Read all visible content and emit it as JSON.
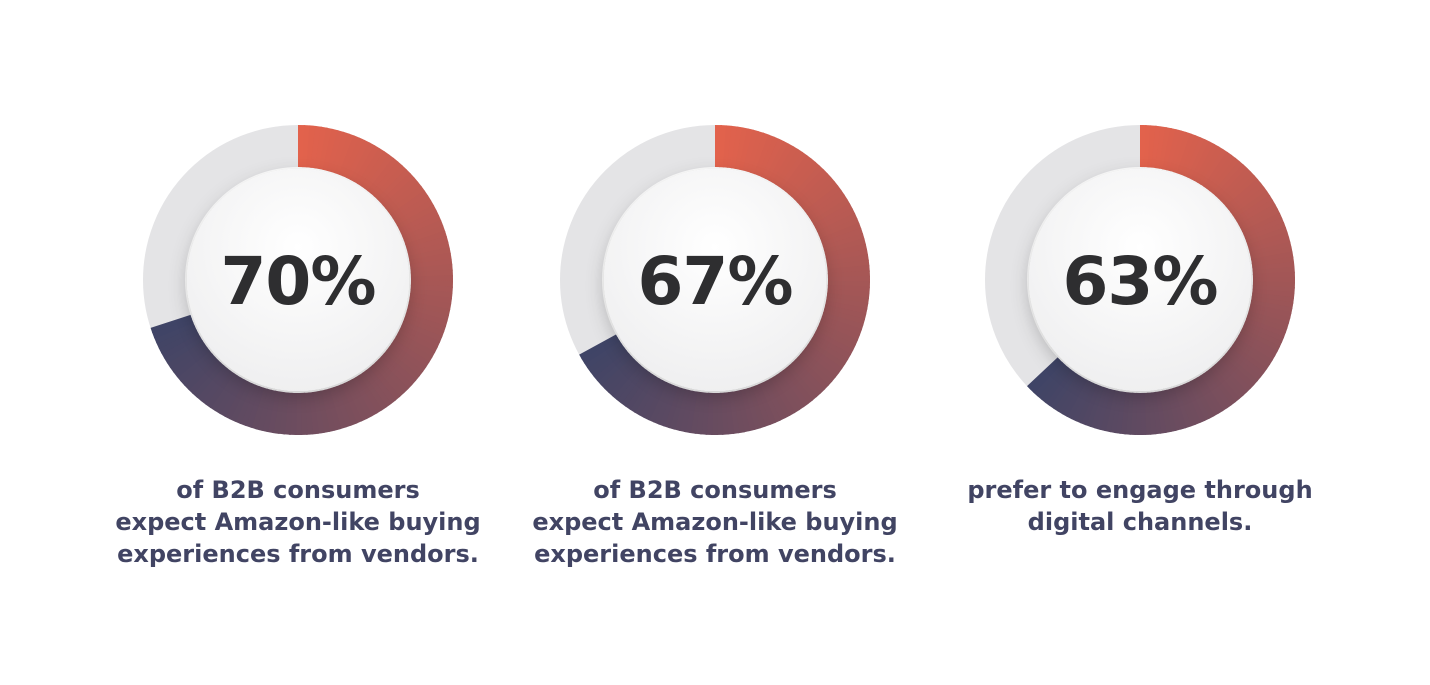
{
  "chart_data": [
    {
      "type": "donut",
      "value": 70,
      "label": "70%",
      "caption": "of B2B consumers\nexpect Amazon-like buying\nexperiences from vendors."
    },
    {
      "type": "donut",
      "value": 67,
      "label": "67%",
      "caption": "of B2B consumers\nexpect Amazon-like buying\nexperiences from vendors."
    },
    {
      "type": "donut",
      "value": 63,
      "label": "63%",
      "caption": "prefer to engage through\ndigital channels."
    }
  ],
  "colors": {
    "track": "#e4e4e6",
    "arc_start": "#e2624c",
    "arc_end": "#3f4466",
    "text_value": "#2e2e30",
    "text_caption": "#414463"
  }
}
